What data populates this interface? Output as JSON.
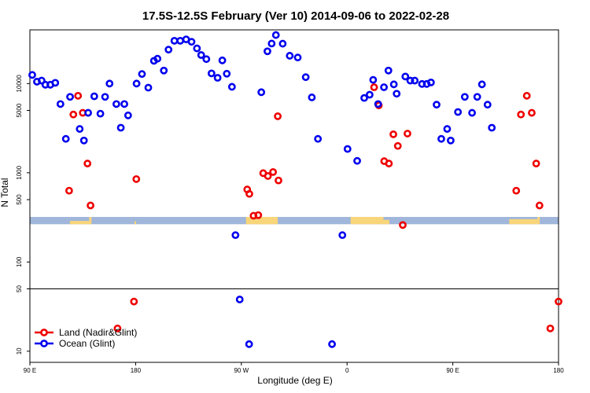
{
  "chart_data": {
    "type": "scatter",
    "title": "17.5S-12.5S February (Ver 10)   2014-09-06 to 2022-02-28",
    "xlabel": "Longitude (deg E)",
    "ylabel": "N Total",
    "x_ticks": [
      {
        "value": -90,
        "label": "90 E"
      },
      {
        "value": -45,
        "label": "180"
      },
      {
        "value": 0,
        "label": "90 W"
      },
      {
        "value": 45,
        "label": "0"
      },
      {
        "value": 90,
        "label": "90 E"
      },
      {
        "value": 135,
        "label": "180"
      }
    ],
    "xlim": [
      -90,
      135
    ],
    "y_scale": "log",
    "ylim": [
      7.5,
      40000
    ],
    "y_ticks": [
      10,
      50,
      100,
      500,
      1000,
      5000,
      10000
    ],
    "grid": false,
    "legend_position": "bottom-left",
    "map_strip": {
      "ocean_color": "#a0b6da",
      "land_color": "#f8d57a"
    },
    "series": [
      {
        "name": "Land (Nadir&Glint)",
        "color": "#ee0000",
        "points": [
          [
            -73.3,
            630
          ],
          [
            -71.5,
            4500
          ],
          [
            -69.5,
            7300
          ],
          [
            -67.5,
            4700
          ],
          [
            -65.5,
            1270
          ],
          [
            -64.2,
            430
          ],
          [
            -52.7,
            18
          ],
          [
            -45.7,
            36
          ],
          [
            -44.7,
            850
          ],
          [
            2.5,
            650
          ],
          [
            3.4,
            580
          ],
          [
            5.2,
            330
          ],
          [
            7.2,
            335
          ],
          [
            9.3,
            990
          ],
          [
            11.3,
            920
          ],
          [
            13.5,
            1020
          ],
          [
            15.5,
            4300
          ],
          [
            15.8,
            820
          ],
          [
            56.5,
            9100
          ],
          [
            58.5,
            5700
          ],
          [
            60.8,
            1350
          ],
          [
            62.8,
            1270
          ],
          [
            64.7,
            2700
          ],
          [
            66.6,
            2000
          ],
          [
            68.7,
            260
          ],
          [
            70.7,
            2750
          ],
          [
            117,
            630
          ],
          [
            119,
            4500
          ],
          [
            121.5,
            7300
          ],
          [
            123.6,
            4700
          ],
          [
            125.5,
            1270
          ],
          [
            126.9,
            430
          ],
          [
            131.5,
            18
          ],
          [
            137,
            36
          ]
        ]
      },
      {
        "name": "Ocean (Glint)",
        "color": "#0000ee",
        "points": [
          [
            -89,
            12500
          ],
          [
            -87,
            10500
          ],
          [
            -85,
            10800
          ],
          [
            -83.4,
            9700
          ],
          [
            -81.3,
            9700
          ],
          [
            -79.2,
            10200
          ],
          [
            -77,
            5900
          ],
          [
            -74.7,
            2400
          ],
          [
            -72.9,
            7100
          ],
          [
            -68.8,
            3100
          ],
          [
            -67,
            2300
          ],
          [
            -65.2,
            4700
          ],
          [
            -62.6,
            7200
          ],
          [
            -60,
            4600
          ],
          [
            -58,
            7100
          ],
          [
            -56.1,
            10000
          ],
          [
            -53.2,
            5900
          ],
          [
            -51.3,
            3200
          ],
          [
            -49.8,
            5900
          ],
          [
            -48.2,
            4400
          ],
          [
            -44.6,
            10000
          ],
          [
            -42.3,
            12800
          ],
          [
            -39.6,
            9000
          ],
          [
            -37.2,
            18000
          ],
          [
            -35.7,
            19000
          ],
          [
            -33,
            14000
          ],
          [
            -31,
            24000
          ],
          [
            -28.5,
            30200
          ],
          [
            -26,
            30200
          ],
          [
            -23.5,
            31300
          ],
          [
            -21.2,
            29400
          ],
          [
            -18.9,
            24800
          ],
          [
            -17.1,
            20900
          ],
          [
            -14.9,
            18800
          ],
          [
            -12.7,
            13000
          ],
          [
            -10.1,
            11600
          ],
          [
            -8.1,
            18200
          ],
          [
            -6.2,
            12900
          ],
          [
            -4,
            9200
          ],
          [
            -2.5,
            200
          ],
          [
            -0.7,
            38
          ],
          [
            3.3,
            12
          ],
          [
            8.5,
            8000
          ],
          [
            11.1,
            23000
          ],
          [
            12.9,
            28100
          ],
          [
            14.7,
            35000
          ],
          [
            17.6,
            28000
          ],
          [
            20.6,
            20500
          ],
          [
            24,
            19600
          ],
          [
            27.4,
            11800
          ],
          [
            30,
            7000
          ],
          [
            32.6,
            2400
          ],
          [
            38.6,
            12
          ],
          [
            43,
            200
          ],
          [
            45.2,
            1850
          ],
          [
            49.3,
            1360
          ],
          [
            52.3,
            6900
          ],
          [
            54.6,
            7500
          ],
          [
            56.1,
            11000
          ],
          [
            58.2,
            5900
          ],
          [
            60.7,
            9100
          ],
          [
            62.6,
            14000
          ],
          [
            64.9,
            9800
          ],
          [
            66.1,
            7700
          ],
          [
            69.8,
            12000
          ],
          [
            71.9,
            10800
          ],
          [
            73.8,
            10800
          ],
          [
            76.9,
            9900
          ],
          [
            78.9,
            9900
          ],
          [
            80.7,
            10300
          ],
          [
            83.1,
            5800
          ],
          [
            85.1,
            2400
          ],
          [
            87.6,
            3100
          ],
          [
            89.1,
            2300
          ],
          [
            92.2,
            4800
          ],
          [
            95.1,
            7100
          ],
          [
            98.2,
            4700
          ],
          [
            100.4,
            7100
          ],
          [
            102.4,
            9800
          ],
          [
            104.8,
            5800
          ],
          [
            106.6,
            3200
          ]
        ]
      }
    ]
  }
}
